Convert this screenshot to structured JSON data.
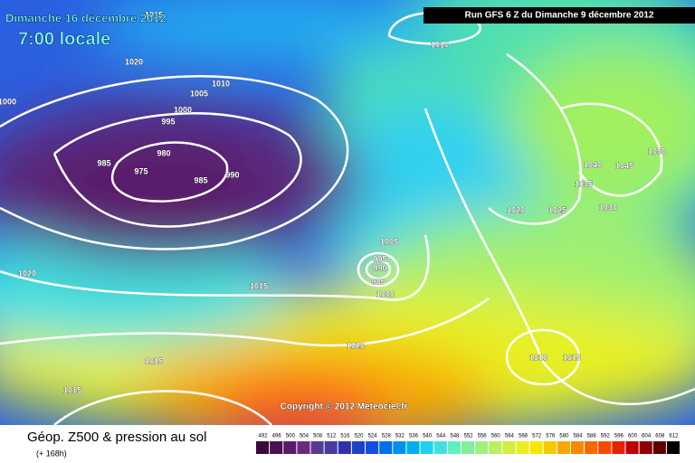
{
  "header": {
    "date": "Dimanche 16 décembre 2012",
    "time": "7:00 locale",
    "run": "Run GFS 6 Z du Dimanche 9 décembre 2012"
  },
  "isobar_labels": [
    "1015",
    "1020",
    "1010",
    "1005",
    "1000",
    "995",
    "980",
    "985",
    "975",
    "985",
    "990",
    "1000",
    "1010",
    "1020",
    "1015",
    "1005",
    "995",
    "990",
    "985",
    "1000",
    "1020",
    "1015",
    "1015",
    "1040",
    "1045",
    "1050",
    "1035",
    "1030",
    "1025",
    "1020",
    "1010",
    "1015"
  ],
  "copyright": "Copyright © 2012 Meteociel.fr",
  "footer": {
    "title": "Géop. Z500 & pression au sol",
    "lead": "(+ 168h)"
  },
  "legend": {
    "values": [
      492,
      496,
      500,
      504,
      508,
      512,
      516,
      520,
      524,
      528,
      532,
      536,
      540,
      544,
      548,
      552,
      556,
      560,
      564,
      568,
      572,
      576,
      580,
      584,
      588,
      592,
      596,
      600,
      604,
      608,
      612
    ],
    "colors": [
      "#3a0a3a",
      "#4a1050",
      "#5a1a6a",
      "#6a2a80",
      "#5a3a90",
      "#4a3aa0",
      "#3030b0",
      "#2040c8",
      "#1050e0",
      "#0070f0",
      "#0090f0",
      "#00b0f0",
      "#20d0f0",
      "#40e0e0",
      "#60f0c0",
      "#80f0a0",
      "#a0f080",
      "#b8f060",
      "#d0f040",
      "#e8f020",
      "#f8e800",
      "#f8c800",
      "#f8a800",
      "#f88800",
      "#f86800",
      "#f84800",
      "#e82000",
      "#c00000",
      "#900000",
      "#600000",
      "#000000"
    ]
  }
}
